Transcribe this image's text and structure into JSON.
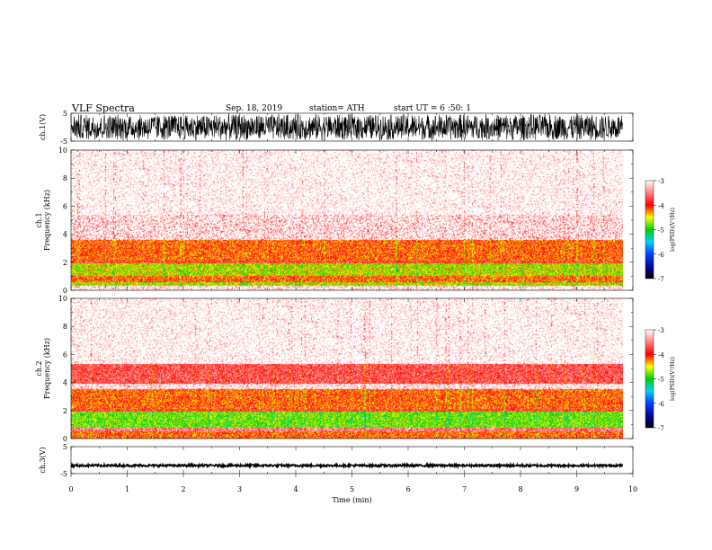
{
  "header": {
    "title": "VLF  Spectra",
    "date": "Sep. 18, 2019",
    "station": "station= ATH",
    "start": "start  UT  =   6  :50: 1"
  },
  "chart_data": [
    {
      "type": "line",
      "panel": "ch1-waveform",
      "ylabel": "ch.1(V)",
      "ylim": [
        -5,
        5
      ],
      "yticks": [
        "5",
        "-5"
      ],
      "x_range_min": [
        0,
        9.82
      ],
      "color": "#000000",
      "description_values": "dense waveform spanning nearly full range"
    },
    {
      "type": "heatmap",
      "panel": "ch1-spectrogram",
      "ylabel": "ch.1\nFrequency (kHz)",
      "ylim": [
        0,
        10
      ],
      "yticks": [
        "0",
        "2",
        "4",
        "6",
        "8",
        "10"
      ],
      "x_range_min": [
        0,
        9.82
      ],
      "bands_khz": [
        {
          "from": 0,
          "to": 0.3,
          "level": -3.3
        },
        {
          "from": 0.3,
          "to": 0.6,
          "level": -4.6
        },
        {
          "from": 0.6,
          "to": 1.0,
          "level": -4.1
        },
        {
          "from": 1.0,
          "to": 1.9,
          "level": -4.6
        },
        {
          "from": 1.9,
          "to": 2.1,
          "level": -3.8
        },
        {
          "from": 2.1,
          "to": 3.6,
          "level": -4.1
        },
        {
          "from": 3.6,
          "to": 5.4,
          "level": -3.4
        },
        {
          "from": 5.4,
          "to": 10,
          "level": -3.1
        }
      ]
    },
    {
      "type": "heatmap",
      "panel": "ch2-spectrogram",
      "ylabel": "ch.2\nFrequency (kHz)",
      "ylim": [
        0,
        10
      ],
      "yticks": [
        "0",
        "2",
        "4",
        "6",
        "8",
        "10"
      ],
      "x_range_min": [
        0,
        9.82
      ],
      "bands_khz": [
        {
          "from": 0,
          "to": 0.5,
          "level": -4.1
        },
        {
          "from": 0.5,
          "to": 0.8,
          "level": -3.5
        },
        {
          "from": 0.8,
          "to": 1.9,
          "level": -4.8
        },
        {
          "from": 1.9,
          "to": 2.1,
          "level": -3.8
        },
        {
          "from": 2.1,
          "to": 3.5,
          "level": -4.1
        },
        {
          "from": 3.5,
          "to": 3.9,
          "level": -3.3
        },
        {
          "from": 3.9,
          "to": 5.3,
          "level": -3.7
        },
        {
          "from": 5.3,
          "to": 10,
          "level": -3.1
        }
      ]
    },
    {
      "type": "line",
      "panel": "ch3-waveform",
      "ylabel": "ch.3(V)",
      "ylim": [
        -5,
        5
      ],
      "yticks": [
        "5",
        "-5"
      ],
      "x_range_min": [
        0,
        9.82
      ],
      "level_v": -2,
      "color": "#000000",
      "xlabel": "Time  (min)",
      "xticks": [
        "0",
        "1",
        "2",
        "3",
        "4",
        "5",
        "6",
        "7",
        "8",
        "9",
        "10"
      ],
      "xlim": [
        0,
        10
      ]
    }
  ],
  "colorbar": {
    "label": "log(PSD)(V²/Hz)",
    "ticks": [
      "-3",
      "-4",
      "-5",
      "-6",
      "-7"
    ],
    "range": [
      -7,
      -3
    ],
    "stops": [
      {
        "v": -7,
        "color": "#000000"
      },
      {
        "v": -6.6,
        "color": "#00008b"
      },
      {
        "v": -6.0,
        "color": "#0040ff"
      },
      {
        "v": -5.5,
        "color": "#00d0ff"
      },
      {
        "v": -5.0,
        "color": "#00d000"
      },
      {
        "v": -4.5,
        "color": "#ffff00"
      },
      {
        "v": -4.0,
        "color": "#ff0000"
      },
      {
        "v": -3.5,
        "color": "#ff8080"
      },
      {
        "v": -3.0,
        "color": "#ffffff"
      }
    ]
  }
}
